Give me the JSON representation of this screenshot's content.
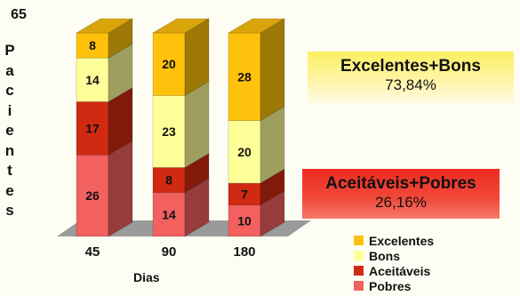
{
  "chart_data": {
    "type": "bar",
    "stacked": true,
    "three_d": true,
    "title": "",
    "ylabel": "Pacientes",
    "ymax_label": "65",
    "xlabel": "Dias",
    "categories": [
      "45",
      "90",
      "180"
    ],
    "ylim": [
      0,
      65
    ],
    "series": [
      {
        "name": "Pobres",
        "values": [
          26,
          14,
          10
        ],
        "color": "#f26060"
      },
      {
        "name": "Aceitáveis",
        "values": [
          17,
          8,
          7
        ],
        "color": "#d12a12"
      },
      {
        "name": "Bons",
        "values": [
          14,
          23,
          20
        ],
        "color": "#ffff99"
      },
      {
        "name": "Excelentes",
        "values": [
          8,
          20,
          28
        ],
        "color": "#ffc20c"
      }
    ],
    "legend": [
      "Excelentes",
      "Bons",
      "Aceitáveis",
      "Pobres"
    ],
    "legend_position": "bottom-right",
    "annotations": [
      {
        "label": "Excelentes+Bons",
        "value": "73,84%"
      },
      {
        "label": "Aceitáveis+Pobres",
        "value": "26,16%"
      }
    ]
  }
}
